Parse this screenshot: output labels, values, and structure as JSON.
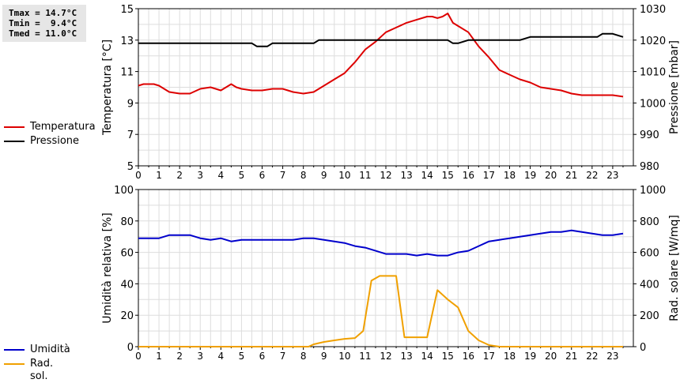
{
  "stats": {
    "tmax": "Tmax = 14.7°C",
    "tmin": "Tmin =  9.4°C",
    "tmed": "Tmed = 11.0°C"
  },
  "legend_top": [
    {
      "label": "Temperatura",
      "color": "#dd0000"
    },
    {
      "label": "Pressione",
      "color": "#000000"
    }
  ],
  "legend_bottom": [
    {
      "label": "Umidità",
      "color": "#0000cc"
    },
    {
      "label": "Rad. sol.",
      "color": "#f0a000"
    }
  ],
  "chart_data": [
    {
      "type": "line",
      "ylabel": "Temperatura [°C]",
      "y2label": "Pressione [mbar]",
      "xlim": [
        0,
        24
      ],
      "ylim": [
        5,
        15
      ],
      "y2lim": [
        980,
        1030
      ],
      "xticks": [
        "0",
        "1",
        "2",
        "3",
        "4",
        "5",
        "6",
        "7",
        "8",
        "9",
        "10",
        "11",
        "12",
        "13",
        "14",
        "15",
        "16",
        "17",
        "18",
        "19",
        "20",
        "21",
        "22",
        "23"
      ],
      "yticks": [
        "5",
        "7",
        "9",
        "11",
        "13",
        "15"
      ],
      "y2ticks": [
        "980",
        "990",
        "1000",
        "1010",
        "1020",
        "1030"
      ],
      "grid": true,
      "series": [
        {
          "name": "Temperatura",
          "axis": "left",
          "color": "#dd0000",
          "x": [
            0,
            0.25,
            0.5,
            0.75,
            1,
            1.25,
            1.5,
            2,
            2.5,
            3,
            3.5,
            4,
            4.25,
            4.5,
            4.75,
            5,
            5.5,
            6,
            6.5,
            7,
            7.5,
            8,
            8.5,
            9,
            9.5,
            10,
            10.5,
            11,
            11.5,
            12,
            12.5,
            13,
            13.5,
            14,
            14.25,
            14.5,
            14.75,
            15,
            15.25,
            15.5,
            16,
            16.5,
            17,
            17.5,
            18,
            18.5,
            19,
            19.5,
            20,
            20.5,
            21,
            21.5,
            22,
            22.5,
            23,
            23.5
          ],
          "y": [
            10.1,
            10.2,
            10.2,
            10.2,
            10.1,
            9.9,
            9.7,
            9.6,
            9.6,
            9.9,
            10.0,
            9.8,
            10.0,
            10.2,
            10.0,
            9.9,
            9.8,
            9.8,
            9.9,
            9.9,
            9.7,
            9.6,
            9.7,
            10.1,
            10.5,
            10.9,
            11.6,
            12.4,
            12.9,
            13.5,
            13.8,
            14.1,
            14.3,
            14.5,
            14.5,
            14.4,
            14.5,
            14.7,
            14.1,
            13.9,
            13.5,
            12.6,
            11.9,
            11.1,
            10.8,
            10.5,
            10.3,
            10.0,
            9.9,
            9.8,
            9.6,
            9.5,
            9.5,
            9.5,
            9.5,
            9.4
          ]
        },
        {
          "name": "Pressione",
          "axis": "right",
          "color": "#000000",
          "x": [
            0,
            0.5,
            1,
            1.5,
            2,
            2.5,
            3,
            3.5,
            4,
            4.5,
            5,
            5.5,
            5.75,
            6,
            6.25,
            6.5,
            7,
            7.5,
            8,
            8.5,
            8.75,
            9,
            9.5,
            10,
            10.5,
            11,
            11.5,
            12,
            12.5,
            13,
            13.5,
            14,
            14.5,
            15,
            15.25,
            15.5,
            16,
            16.5,
            17,
            17.5,
            18,
            18.5,
            19,
            19.5,
            20,
            20.5,
            21,
            21.5,
            22,
            22.25,
            22.5,
            22.75,
            23,
            23.5
          ],
          "y": [
            1019,
            1019,
            1019,
            1019,
            1019,
            1019,
            1019,
            1019,
            1019,
            1019,
            1019,
            1019,
            1018,
            1018,
            1018,
            1019,
            1019,
            1019,
            1019,
            1019,
            1020,
            1020,
            1020,
            1020,
            1020,
            1020,
            1020,
            1020,
            1020,
            1020,
            1020,
            1020,
            1020,
            1020,
            1019,
            1019,
            1020,
            1020,
            1020,
            1020,
            1020,
            1020,
            1021,
            1021,
            1021,
            1021,
            1021,
            1021,
            1021,
            1021,
            1022,
            1022,
            1022,
            1021
          ]
        }
      ]
    },
    {
      "type": "line",
      "ylabel": "Umidità relativa [%]",
      "y2label": "Rad. solare [W/mq]",
      "xlim": [
        0,
        24
      ],
      "ylim": [
        0,
        100
      ],
      "y2lim": [
        0,
        1000
      ],
      "xticks": [
        "0",
        "1",
        "2",
        "3",
        "4",
        "5",
        "6",
        "7",
        "8",
        "9",
        "10",
        "11",
        "12",
        "13",
        "14",
        "15",
        "16",
        "17",
        "18",
        "19",
        "20",
        "21",
        "22",
        "23"
      ],
      "yticks": [
        "0",
        "20",
        "40",
        "60",
        "80",
        "100"
      ],
      "y2ticks": [
        "0",
        "200",
        "400",
        "600",
        "800",
        "1000"
      ],
      "grid": true,
      "series": [
        {
          "name": "Umidità",
          "axis": "left",
          "color": "#0000cc",
          "x": [
            0,
            0.5,
            1,
            1.5,
            2,
            2.5,
            3,
            3.5,
            4,
            4.5,
            5,
            5.5,
            6,
            6.5,
            7,
            7.5,
            8,
            8.5,
            9,
            9.5,
            10,
            10.5,
            11,
            11.5,
            12,
            12.5,
            13,
            13.5,
            14,
            14.5,
            15,
            15.5,
            16,
            16.5,
            17,
            17.5,
            18,
            18.5,
            19,
            19.5,
            20,
            20.5,
            21,
            21.5,
            22,
            22.5,
            23,
            23.5
          ],
          "y": [
            69,
            69,
            69,
            71,
            71,
            71,
            69,
            68,
            69,
            67,
            68,
            68,
            68,
            68,
            68,
            68,
            69,
            69,
            68,
            67,
            66,
            64,
            63,
            61,
            59,
            59,
            59,
            58,
            59,
            58,
            58,
            60,
            61,
            64,
            67,
            68,
            69,
            70,
            71,
            72,
            73,
            73,
            74,
            73,
            72,
            71,
            71,
            72
          ]
        },
        {
          "name": "Rad. sol.",
          "axis": "right",
          "color": "#f0a000",
          "x": [
            0,
            1,
            2,
            3,
            4,
            5,
            6,
            7,
            8,
            8.25,
            8.5,
            9,
            9.5,
            10,
            10.5,
            10.9,
            11.3,
            11.7,
            12,
            12.5,
            12.9,
            13.5,
            14,
            14.5,
            15,
            15.5,
            16,
            16.5,
            17,
            17.5,
            18,
            19,
            20,
            21,
            22,
            23,
            23.5
          ],
          "y": [
            0,
            0,
            0,
            0,
            0,
            0,
            0,
            0,
            0,
            0,
            15,
            30,
            40,
            50,
            55,
            100,
            420,
            450,
            450,
            450,
            60,
            60,
            60,
            360,
            300,
            250,
            100,
            40,
            10,
            0,
            0,
            0,
            0,
            0,
            0,
            0,
            0
          ]
        }
      ]
    }
  ]
}
